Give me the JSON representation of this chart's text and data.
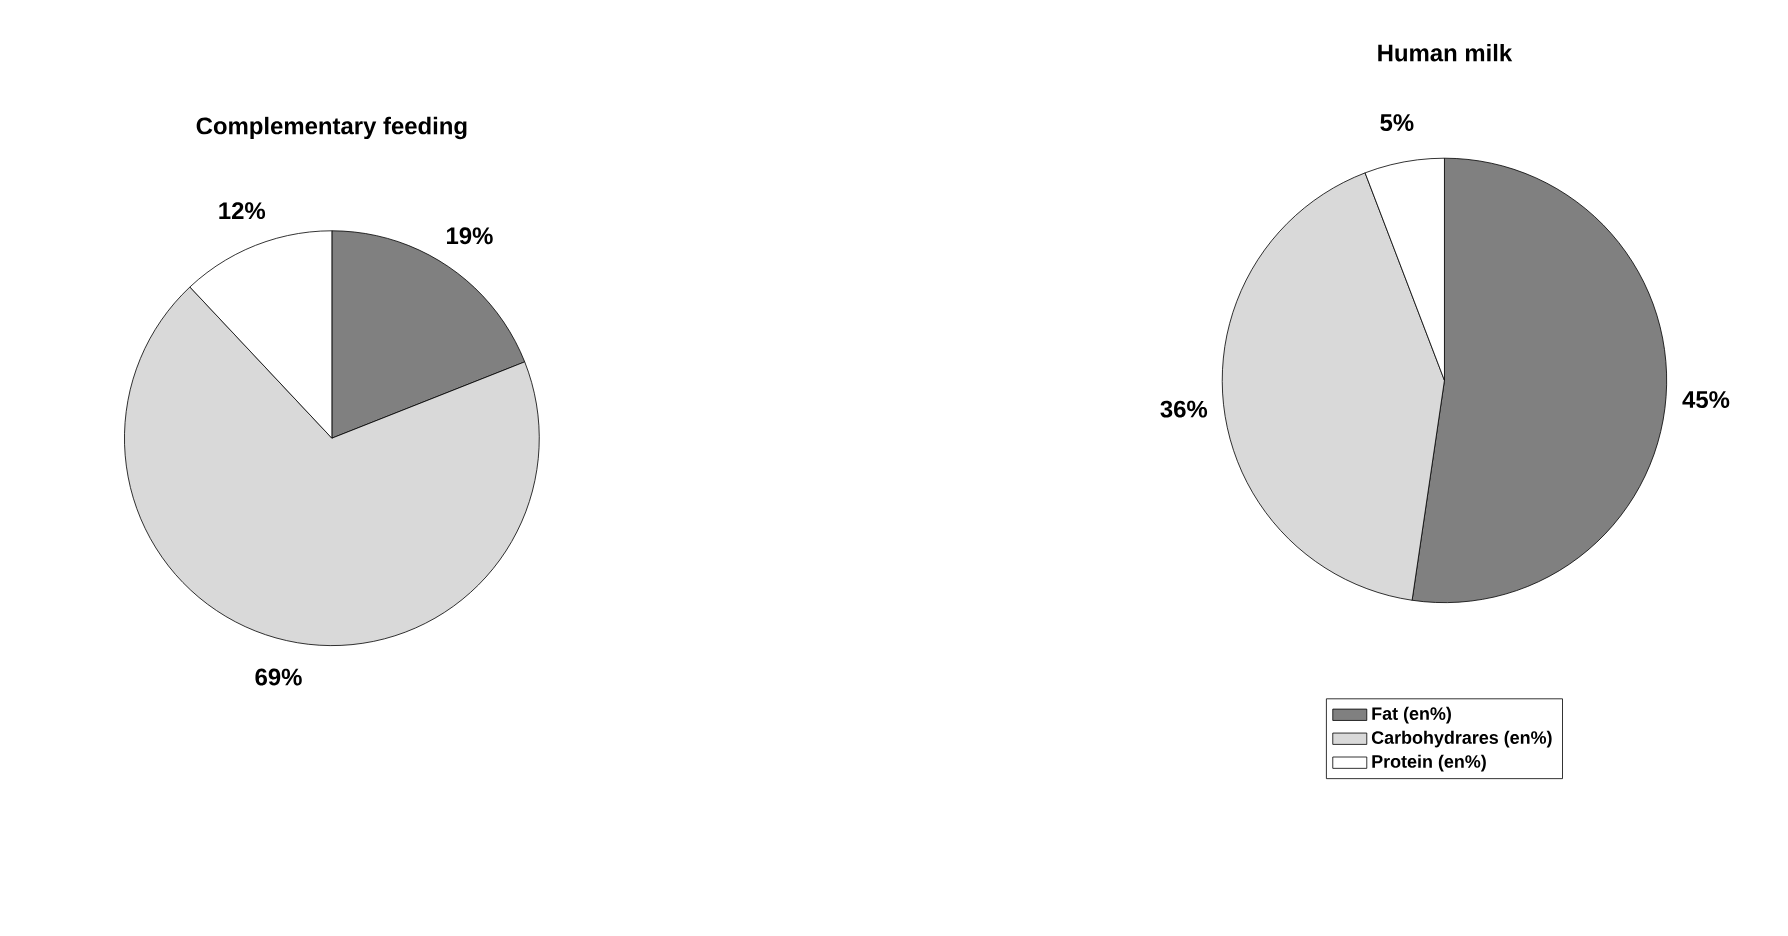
{
  "chart_data": [
    {
      "type": "pie",
      "title": "Complementary feeding",
      "categories": [
        null,
        null,
        null
      ],
      "values": [
        19,
        69,
        12
      ],
      "colors": [
        "#808080",
        "#d9d9d9",
        "#ffffff"
      ],
      "value_labels": [
        "19%",
        "69%",
        "12%"
      ],
      "legend": false
    },
    {
      "type": "pie",
      "title": "Human milk",
      "categories": [
        "Fat (en%)",
        "Carbohydrares (en%)",
        "Protein (en%)"
      ],
      "values": [
        45,
        36,
        5
      ],
      "colors": [
        "#808080",
        "#d9d9d9",
        "#ffffff"
      ],
      "value_labels": [
        "45%",
        "36%",
        "5%"
      ],
      "legend": "bottom"
    }
  ]
}
